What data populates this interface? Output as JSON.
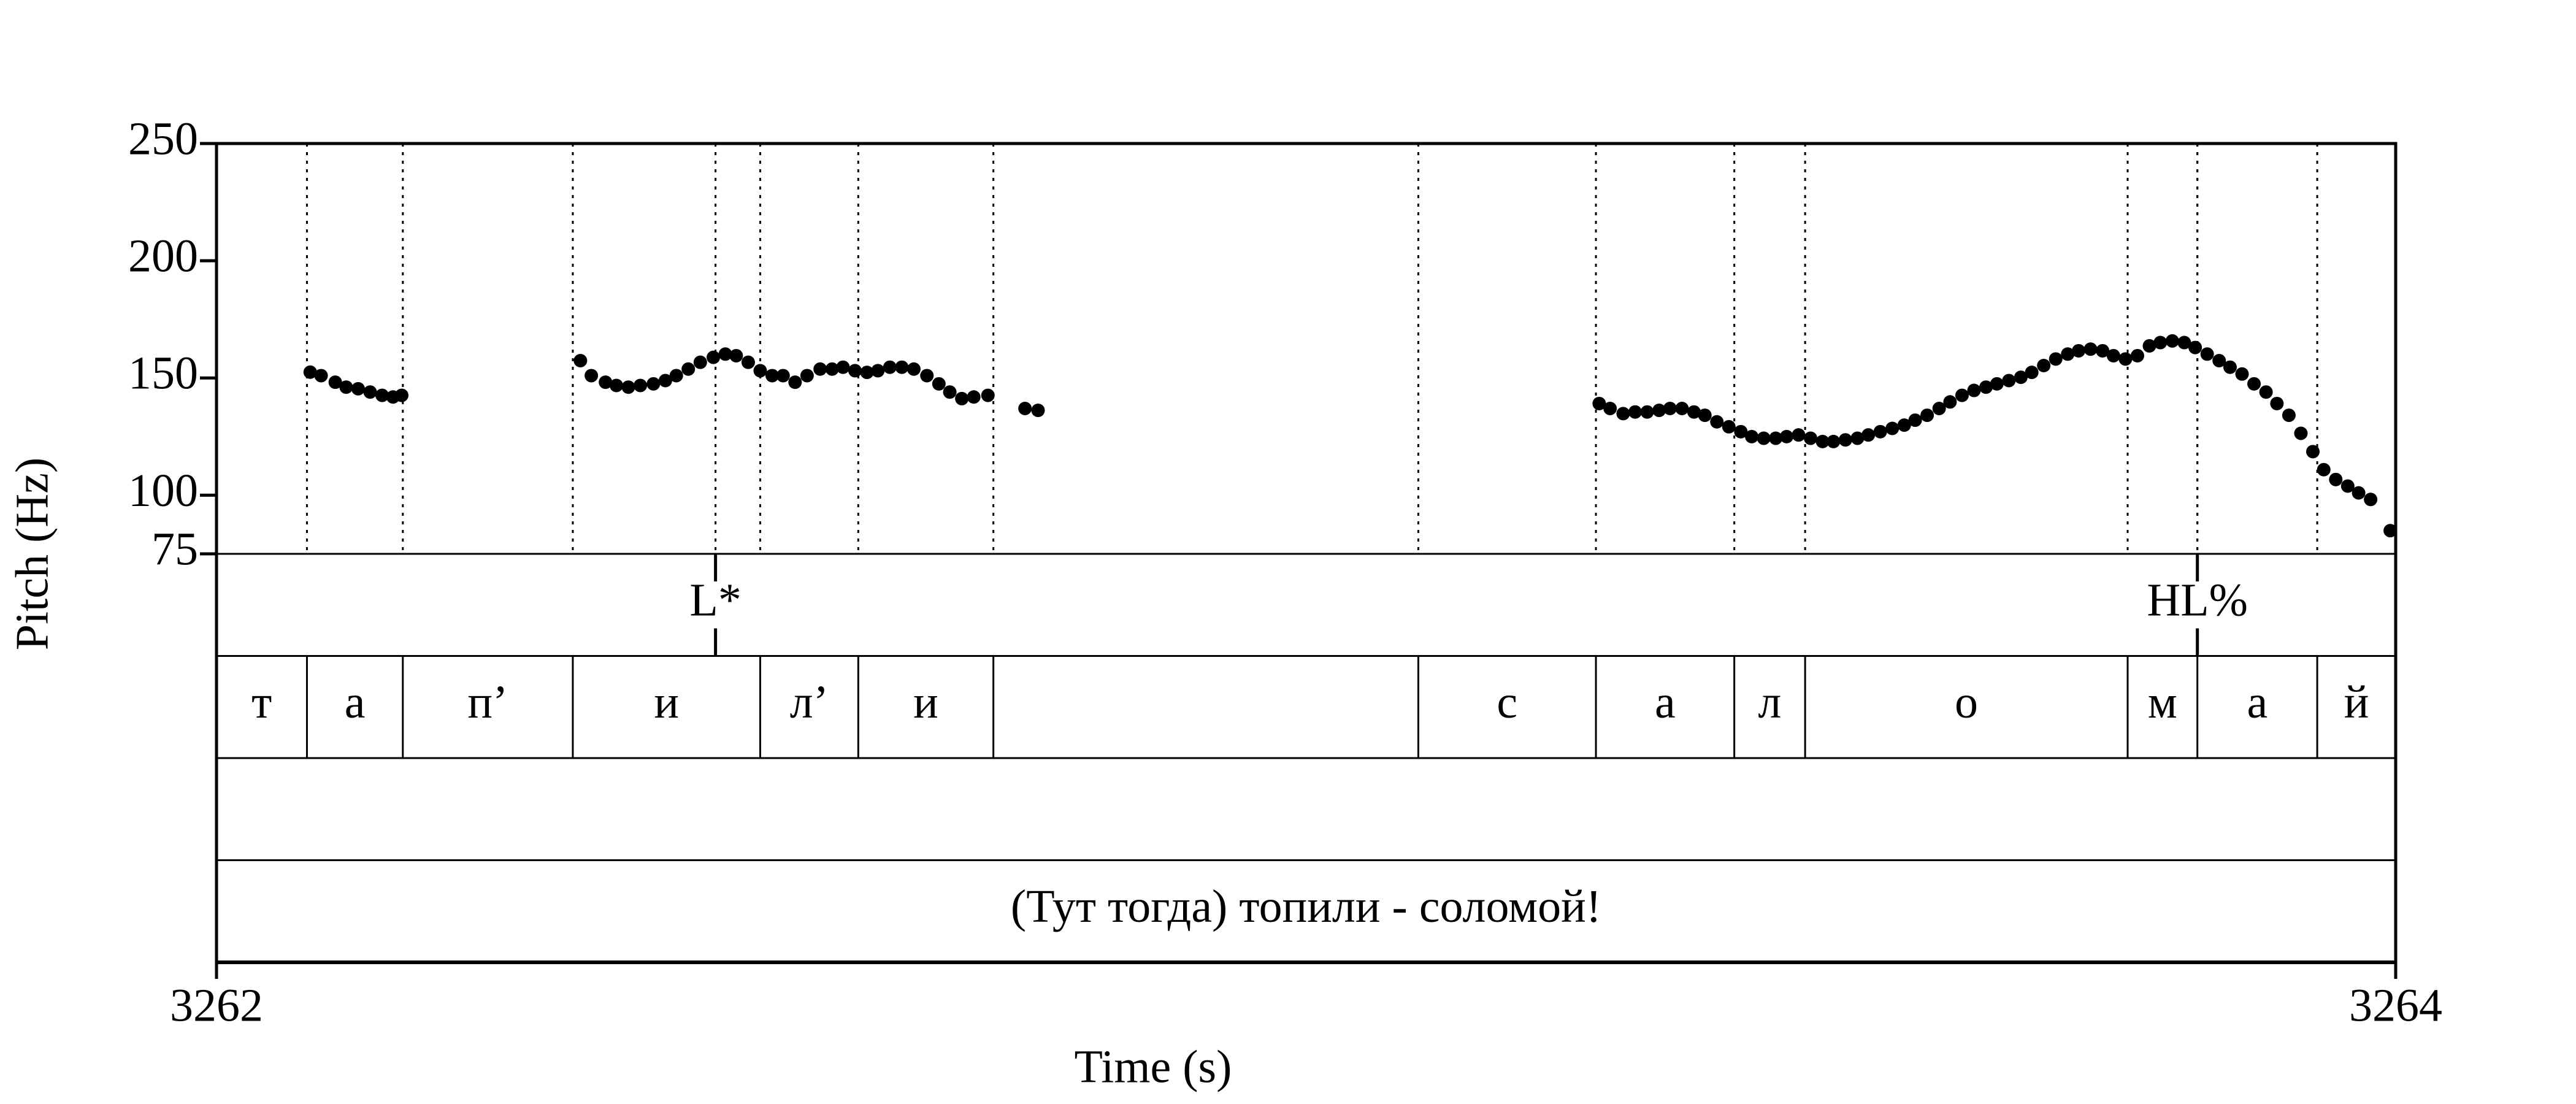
{
  "chart_data": {
    "type": "scatter",
    "xlabel": "Time (s)",
    "ylabel": "Pitch (Hz)",
    "xlim": [
      3262,
      3264
    ],
    "xticks": [
      3262,
      3264
    ],
    "ylim": [
      75,
      250
    ],
    "yticks": [
      250,
      200,
      150,
      100,
      75
    ],
    "color": "#000000",
    "x": [
      3262.086,
      3262.096,
      3262.109,
      3262.119,
      3262.13,
      3262.141,
      3262.152,
      3262.162,
      3262.17,
      3262.334,
      3262.344,
      3262.357,
      3262.367,
      3262.378,
      3262.389,
      3262.401,
      3262.412,
      3262.422,
      3262.433,
      3262.444,
      3262.456,
      3262.467,
      3262.477,
      3262.488,
      3262.499,
      3262.51,
      3262.52,
      3262.531,
      3262.542,
      3262.554,
      3262.565,
      3262.575,
      3262.586,
      3262.597,
      3262.607,
      3262.618,
      3262.629,
      3262.64,
      3262.652,
      3262.663,
      3262.673,
      3262.684,
      3262.695,
      3262.708,
      3262.742,
      3262.754,
      3263.269,
      3263.279,
      3263.291,
      3263.302,
      3263.313,
      3263.324,
      3263.334,
      3263.345,
      3263.356,
      3263.366,
      3263.377,
      3263.388,
      3263.399,
      3263.409,
      3263.42,
      3263.431,
      3263.441,
      3263.452,
      3263.463,
      3263.474,
      3263.484,
      3263.495,
      3263.506,
      3263.516,
      3263.527,
      3263.538,
      3263.549,
      3263.559,
      3263.57,
      3263.581,
      3263.591,
      3263.602,
      3263.613,
      3263.624,
      3263.634,
      3263.645,
      3263.656,
      3263.666,
      3263.677,
      3263.688,
      3263.699,
      3263.709,
      3263.72,
      3263.731,
      3263.741,
      3263.752,
      3263.763,
      3263.774,
      3263.784,
      3263.795,
      3263.806,
      3263.816,
      3263.827,
      3263.838,
      3263.848,
      3263.859,
      3263.87,
      3263.881,
      3263.891,
      3263.902,
      3263.913,
      3263.924,
      3263.934,
      3263.945,
      3263.956,
      3263.966,
      3263.977,
      3263.995
    ],
    "values": [
      152.5,
      151.0,
      148.2,
      146.1,
      145.4,
      144.0,
      142.6,
      141.9,
      142.6,
      157.4,
      151.0,
      148.2,
      146.8,
      146.1,
      146.8,
      147.5,
      148.9,
      151.0,
      153.8,
      156.7,
      158.8,
      160.2,
      159.5,
      156.7,
      153.1,
      151.0,
      151.0,
      148.2,
      151.0,
      153.8,
      153.8,
      154.6,
      153.1,
      152.4,
      153.1,
      154.6,
      154.6,
      153.8,
      151.0,
      147.5,
      144.0,
      141.2,
      141.9,
      142.6,
      137.0,
      136.2,
      139.1,
      137.0,
      134.8,
      135.5,
      135.5,
      136.2,
      137.0,
      137.0,
      135.5,
      134.1,
      131.3,
      129.2,
      127.1,
      125.0,
      124.3,
      124.3,
      125.0,
      125.7,
      124.3,
      122.9,
      122.9,
      123.6,
      124.3,
      125.7,
      127.1,
      128.5,
      129.9,
      132.0,
      134.1,
      137.0,
      139.8,
      142.6,
      144.7,
      146.1,
      147.5,
      148.9,
      150.3,
      152.4,
      155.3,
      158.1,
      160.2,
      161.6,
      162.3,
      161.6,
      159.5,
      158.1,
      159.5,
      163.7,
      165.1,
      165.8,
      165.1,
      163.0,
      160.2,
      157.4,
      154.6,
      151.7,
      147.5,
      144.0,
      139.1,
      134.1,
      126.4,
      118.6,
      110.9,
      106.7,
      103.9,
      101.0,
      98.2,
      84.9
    ],
    "tiers": [
      {
        "type": "point",
        "points": [
          3262.458,
          3263.818
        ],
        "labels": [
          "L*",
          "HL%"
        ]
      },
      {
        "type": "interval",
        "boundaries": [
          3262.083,
          3262.171,
          3262.327,
          3262.499,
          3262.589,
          3262.713,
          3263.103,
          3263.266,
          3263.393,
          3263.458,
          3263.754,
          3263.818,
          3263.928
        ],
        "labels": [
          "т",
          "а",
          "п’",
          "и",
          "л’",
          "и",
          null,
          "с",
          "а",
          "л",
          "о",
          "м",
          "а",
          "й"
        ]
      },
      {
        "type": "interval",
        "boundaries": [],
        "labels": [
          null
        ]
      },
      {
        "type": "interval",
        "boundaries": [],
        "labels": [
          "(Тут тогда) топили - соломой!"
        ]
      }
    ]
  }
}
